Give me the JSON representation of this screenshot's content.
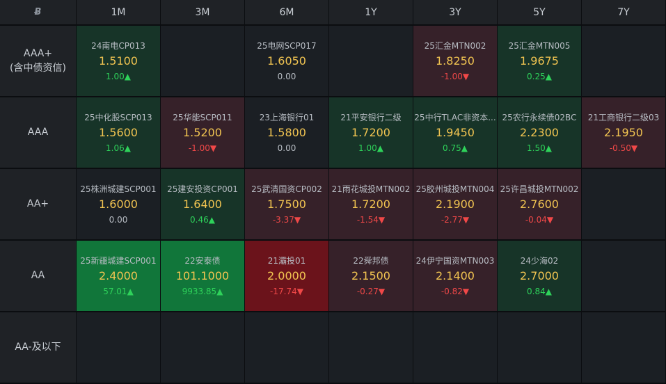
{
  "corner_icon": "app-logo-icon",
  "columns": [
    "1M",
    "3M",
    "6M",
    "1Y",
    "3Y",
    "5Y",
    "7Y"
  ],
  "rows": [
    {
      "label": [
        "AAA+",
        "(含中债资信)"
      ],
      "cells": [
        {
          "name": "24南电CP013",
          "rate": "1.5100",
          "change": "1.00",
          "dir": "up",
          "tone": "gl"
        },
        null,
        {
          "name": "25电网SCP017",
          "rate": "1.6050",
          "change": "0.00",
          "dir": "flat",
          "tone": "n"
        },
        null,
        {
          "name": "25汇金MTN002",
          "rate": "1.8250",
          "change": "-1.00",
          "dir": "down",
          "tone": "rl"
        },
        {
          "name": "25汇金MTN005",
          "rate": "1.9675",
          "change": "0.25",
          "dir": "up",
          "tone": "gl"
        },
        null
      ]
    },
    {
      "label": [
        "AAA"
      ],
      "cells": [
        {
          "name": "25中化股SCP013",
          "rate": "1.5600",
          "change": "1.06",
          "dir": "up",
          "tone": "gl"
        },
        {
          "name": "25华能SCP011",
          "rate": "1.5200",
          "change": "-1.00",
          "dir": "down",
          "tone": "rl"
        },
        {
          "name": "23上海银行01",
          "rate": "1.5800",
          "change": "0.00",
          "dir": "flat",
          "tone": "n"
        },
        {
          "name": "21平安银行二级",
          "rate": "1.7200",
          "change": "1.00",
          "dir": "up",
          "tone": "gl"
        },
        {
          "name": "25中行TLAC非资本...",
          "rate": "1.9450",
          "change": "0.75",
          "dir": "up",
          "tone": "gl"
        },
        {
          "name": "25农行永续债02BC",
          "rate": "2.2300",
          "change": "1.50",
          "dir": "up",
          "tone": "gl"
        },
        {
          "name": "21工商银行二级03",
          "rate": "2.1950",
          "change": "-0.50",
          "dir": "down",
          "tone": "rl"
        }
      ]
    },
    {
      "label": [
        "AA+"
      ],
      "cells": [
        {
          "name": "25株洲城建SCP001",
          "rate": "1.6000",
          "change": "0.00",
          "dir": "flat",
          "tone": "n"
        },
        {
          "name": "25建安投资CP001",
          "rate": "1.6400",
          "change": "0.46",
          "dir": "up",
          "tone": "gl"
        },
        {
          "name": "25武清国资CP002",
          "rate": "1.7500",
          "change": "-3.37",
          "dir": "down",
          "tone": "rl"
        },
        {
          "name": "21雨花城投MTN002",
          "rate": "1.7200",
          "change": "-1.54",
          "dir": "down",
          "tone": "rl"
        },
        {
          "name": "25胶州城投MTN004",
          "rate": "2.1900",
          "change": "-2.77",
          "dir": "down",
          "tone": "rl"
        },
        {
          "name": "25许昌城投MTN002",
          "rate": "2.7600",
          "change": "-0.04",
          "dir": "down",
          "tone": "rl"
        },
        null
      ]
    },
    {
      "label": [
        "AA"
      ],
      "cells": [
        {
          "name": "25新疆城建SCP001",
          "rate": "2.4000",
          "change": "57.01",
          "dir": "up",
          "tone": "gm"
        },
        {
          "name": "22安泰债",
          "rate": "101.1000",
          "change": "9933.85",
          "dir": "up",
          "tone": "gm"
        },
        {
          "name": "21灞投01",
          "rate": "2.0000",
          "change": "-17.74",
          "dir": "down",
          "tone": "rm"
        },
        {
          "name": "22舜邦债",
          "rate": "2.1500",
          "change": "-0.27",
          "dir": "down",
          "tone": "rl"
        },
        {
          "name": "24伊宁国资MTN003",
          "rate": "2.1400",
          "change": "-0.82",
          "dir": "down",
          "tone": "rl"
        },
        {
          "name": "24少海02",
          "rate": "2.7000",
          "change": "0.84",
          "dir": "up",
          "tone": "gl"
        },
        null
      ]
    },
    {
      "label": [
        "AA-及以下"
      ],
      "cells": [
        null,
        null,
        null,
        null,
        null,
        null,
        null
      ]
    }
  ],
  "arrows": {
    "up": "▲",
    "down": "▼",
    "flat": ""
  },
  "colors": {
    "up": "#2ed25a",
    "down": "#f04848",
    "rate": "#f1c451",
    "header_bg": "#1f2226",
    "cell_bg": "#1b1f24"
  }
}
